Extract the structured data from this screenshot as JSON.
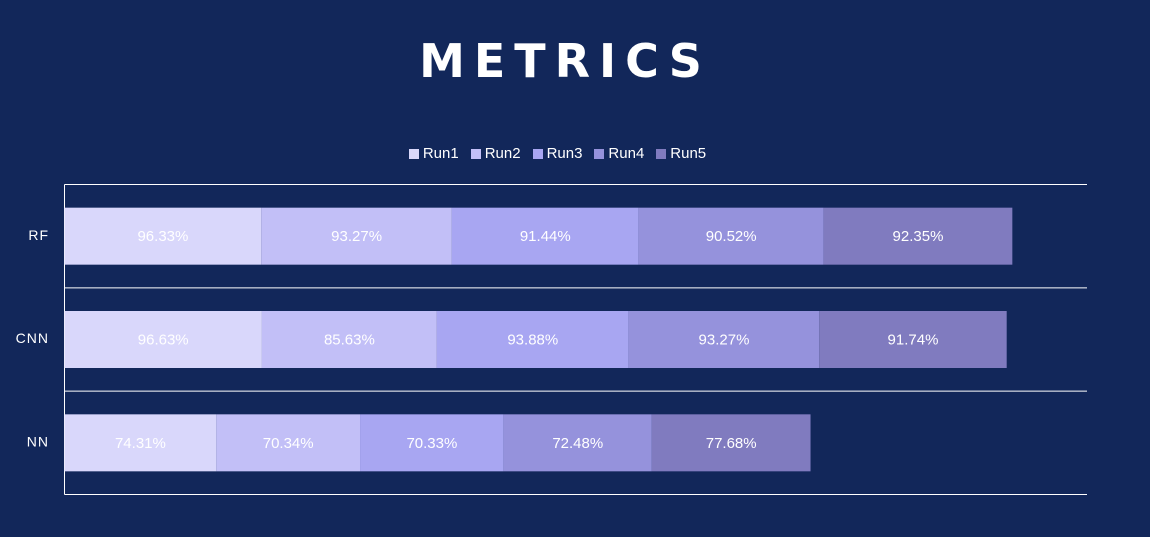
{
  "chart_data": {
    "type": "bar",
    "orientation": "horizontal",
    "stacked": true,
    "title": "METRICS",
    "categories": [
      "RF",
      "CNN",
      "NN"
    ],
    "series": [
      {
        "name": "Run1",
        "color": "#d9d7fb",
        "values": [
          96.33,
          96.63,
          74.31
        ],
        "labels": [
          "96.33%",
          "96.63%",
          "74.31%"
        ]
      },
      {
        "name": "Run2",
        "color": "#c2bff7",
        "values": [
          93.27,
          85.63,
          70.34
        ],
        "labels": [
          "93.27%",
          "85.63%",
          "70.34%"
        ]
      },
      {
        "name": "Run3",
        "color": "#a8a6f2",
        "values": [
          91.44,
          93.88,
          70.33
        ],
        "labels": [
          "91.44%",
          "93.88%",
          "70.33%"
        ]
      },
      {
        "name": "Run4",
        "color": "#9592dc",
        "values": [
          90.52,
          93.27,
          72.48
        ],
        "labels": [
          "90.52%",
          "93.27%",
          "72.48%"
        ]
      },
      {
        "name": "Run5",
        "color": "#807bbf",
        "values": [
          92.35,
          91.74,
          77.68
        ],
        "labels": [
          "92.35%",
          "91.74%",
          "77.68%"
        ]
      }
    ],
    "xlim": [
      0,
      500
    ],
    "legend_position": "top",
    "grid": true
  }
}
